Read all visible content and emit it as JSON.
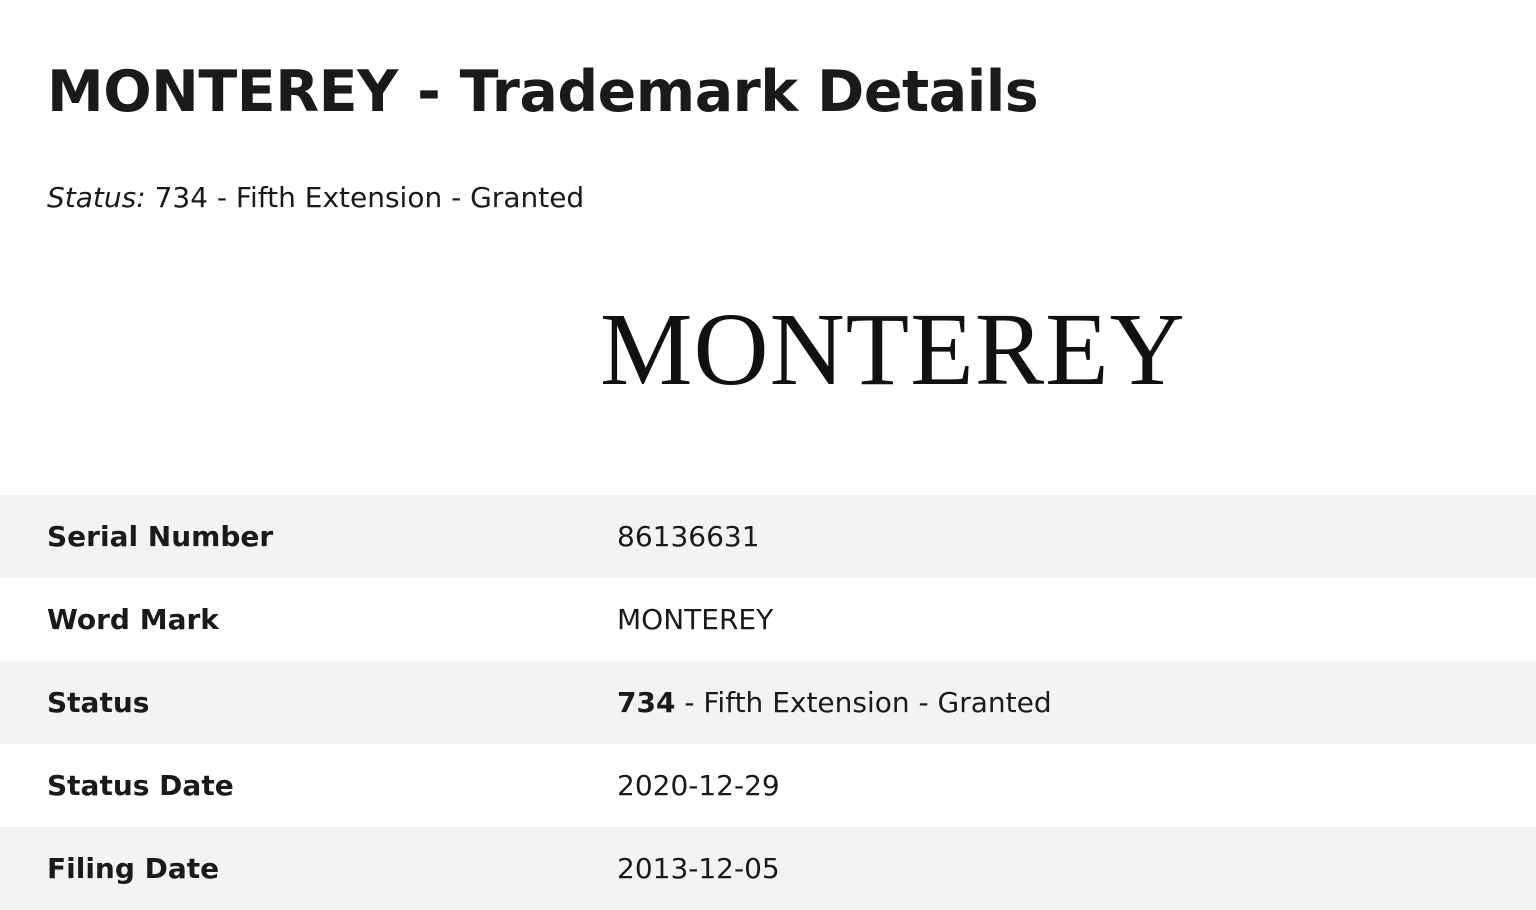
{
  "page": {
    "title": "MONTEREY - Trademark Details",
    "status_label": "Status:",
    "status_text": "734 - Fifth Extension - Granted",
    "logo_text": "MONTEREY"
  },
  "details": {
    "rows": [
      {
        "label": "Serial Number",
        "value": "86136631"
      },
      {
        "label": "Word Mark",
        "value": "MONTEREY"
      },
      {
        "label": "Status",
        "code": "734",
        "value": " - Fifth Extension - Granted"
      },
      {
        "label": "Status Date",
        "value": "2020-12-29"
      },
      {
        "label": "Filing Date",
        "value": "2013-12-05"
      }
    ]
  }
}
